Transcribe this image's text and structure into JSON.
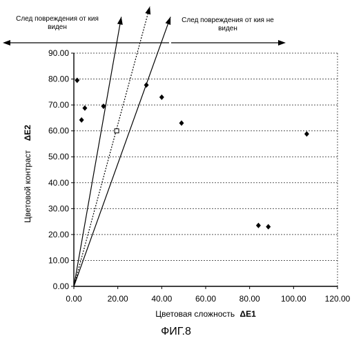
{
  "chart_data": {
    "type": "scatter",
    "title": "",
    "xlabel_text": "Цветовая сложность",
    "xlabel_symbol": "ΔE1",
    "ylabel_text": "Цветовой контраст",
    "ylabel_symbol": "ΔE2",
    "xlim": [
      0,
      120
    ],
    "ylim": [
      0,
      90
    ],
    "xticks": [
      "0.00",
      "20.00",
      "40.00",
      "60.00",
      "80.00",
      "100.00",
      "120.00"
    ],
    "xtick_values": [
      0,
      20,
      40,
      60,
      80,
      100,
      120
    ],
    "yticks": [
      "0.00",
      "10.00",
      "20.00",
      "30.00",
      "40.00",
      "50.00",
      "60.00",
      "70.00",
      "80.00",
      "90.00"
    ],
    "ytick_values": [
      0,
      10,
      20,
      30,
      40,
      50,
      60,
      70,
      80,
      90
    ],
    "grid": "horizontal dotted",
    "series": [
      {
        "marker": "diamond-filled",
        "points": [
          {
            "x": 1.5,
            "y": 79.5
          },
          {
            "x": 3.5,
            "y": 64.2
          },
          {
            "x": 5.0,
            "y": 68.8
          },
          {
            "x": 13.5,
            "y": 69.5
          },
          {
            "x": 33.0,
            "y": 77.7
          },
          {
            "x": 40.0,
            "y": 73.0
          },
          {
            "x": 49.0,
            "y": 63.0
          },
          {
            "x": 106.0,
            "y": 58.8
          },
          {
            "x": 84.0,
            "y": 23.5
          },
          {
            "x": 88.5,
            "y": 23.0
          }
        ]
      },
      {
        "marker": "square-open",
        "points": [
          {
            "x": 19.5,
            "y": 60.0
          }
        ]
      }
    ],
    "reference_lines": [
      {
        "style": "solid",
        "to": {
          "x": 21.6,
          "y": 104
        }
      },
      {
        "style": "dotted",
        "to": {
          "x": 34.6,
          "y": 108
        }
      },
      {
        "style": "solid",
        "to": {
          "x": 44.0,
          "y": 104
        }
      }
    ]
  },
  "annotations": {
    "left_note": "След повреждения от кия виден",
    "right_note": "След повреждения от кия не виден"
  },
  "caption": "ФИГ.8"
}
